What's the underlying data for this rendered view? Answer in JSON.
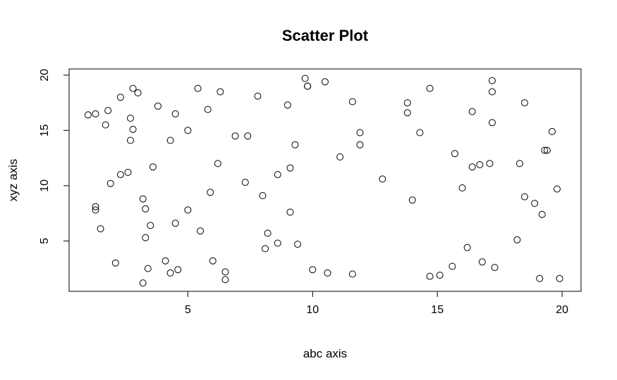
{
  "chart_data": {
    "type": "scatter",
    "title": "Scatter Plot",
    "xlabel": "abc axis",
    "ylabel": "xyz axis",
    "xlim": [
      0.24,
      20.76
    ],
    "ylim": [
      0.44,
      20.56
    ],
    "xticks": [
      5,
      10,
      15,
      20
    ],
    "yticks": [
      5,
      10,
      15,
      20
    ],
    "grid": false,
    "legend": "none",
    "colors": {
      "points": "#000000",
      "frame": "#000000",
      "background": "#ffffff"
    },
    "points": [
      [
        1.0,
        16.4
      ],
      [
        1.3,
        16.5
      ],
      [
        1.8,
        16.8
      ],
      [
        1.7,
        15.5
      ],
      [
        2.3,
        18.0
      ],
      [
        2.8,
        18.8
      ],
      [
        3.0,
        18.4
      ],
      [
        2.7,
        16.1
      ],
      [
        2.8,
        15.1
      ],
      [
        2.7,
        14.1
      ],
      [
        2.3,
        11.0
      ],
      [
        2.6,
        11.2
      ],
      [
        1.9,
        10.2
      ],
      [
        1.3,
        8.1
      ],
      [
        1.3,
        7.8
      ],
      [
        1.5,
        6.1
      ],
      [
        2.1,
        3.0
      ],
      [
        3.2,
        1.2
      ],
      [
        3.2,
        8.8
      ],
      [
        3.3,
        7.9
      ],
      [
        3.3,
        5.3
      ],
      [
        3.5,
        6.4
      ],
      [
        3.4,
        2.5
      ],
      [
        3.6,
        11.7
      ],
      [
        3.8,
        17.2
      ],
      [
        4.1,
        3.2
      ],
      [
        4.3,
        2.1
      ],
      [
        4.3,
        14.1
      ],
      [
        4.5,
        16.5
      ],
      [
        4.5,
        6.6
      ],
      [
        4.6,
        2.4
      ],
      [
        5.0,
        15.0
      ],
      [
        5.0,
        7.8
      ],
      [
        5.4,
        18.8
      ],
      [
        5.5,
        5.9
      ],
      [
        5.8,
        16.9
      ],
      [
        5.9,
        9.4
      ],
      [
        6.0,
        3.2
      ],
      [
        6.2,
        12.0
      ],
      [
        6.3,
        18.5
      ],
      [
        6.5,
        1.5
      ],
      [
        6.5,
        2.2
      ],
      [
        6.9,
        14.5
      ],
      [
        7.3,
        10.3
      ],
      [
        7.4,
        14.5
      ],
      [
        7.8,
        18.1
      ],
      [
        8.0,
        9.1
      ],
      [
        8.1,
        4.3
      ],
      [
        8.2,
        5.7
      ],
      [
        8.6,
        11.0
      ],
      [
        8.6,
        4.8
      ],
      [
        9.0,
        17.3
      ],
      [
        9.1,
        11.6
      ],
      [
        9.1,
        7.6
      ],
      [
        9.3,
        13.7
      ],
      [
        9.4,
        4.7
      ],
      [
        9.7,
        19.7
      ],
      [
        9.8,
        19.0
      ],
      [
        9.8,
        19.0
      ],
      [
        10.0,
        2.4
      ],
      [
        10.5,
        19.4
      ],
      [
        10.6,
        2.1
      ],
      [
        11.1,
        12.6
      ],
      [
        11.6,
        17.6
      ],
      [
        11.6,
        2.0
      ],
      [
        11.9,
        14.8
      ],
      [
        11.9,
        13.7
      ],
      [
        12.8,
        10.6
      ],
      [
        13.8,
        17.5
      ],
      [
        13.8,
        16.6
      ],
      [
        14.0,
        8.7
      ],
      [
        14.3,
        14.8
      ],
      [
        14.7,
        1.8
      ],
      [
        14.7,
        18.8
      ],
      [
        15.1,
        1.9
      ],
      [
        15.6,
        2.7
      ],
      [
        15.7,
        12.9
      ],
      [
        16.0,
        9.8
      ],
      [
        16.2,
        4.4
      ],
      [
        16.4,
        16.7
      ],
      [
        16.4,
        11.7
      ],
      [
        16.7,
        11.9
      ],
      [
        16.8,
        3.1
      ],
      [
        17.1,
        12.0
      ],
      [
        17.2,
        19.5
      ],
      [
        17.2,
        18.5
      ],
      [
        17.2,
        15.7
      ],
      [
        17.3,
        2.6
      ],
      [
        18.2,
        5.1
      ],
      [
        18.3,
        12.0
      ],
      [
        18.5,
        17.5
      ],
      [
        18.5,
        9.0
      ],
      [
        18.9,
        8.4
      ],
      [
        19.1,
        1.6
      ],
      [
        19.2,
        7.4
      ],
      [
        19.3,
        13.2
      ],
      [
        19.4,
        13.2
      ],
      [
        19.6,
        14.9
      ],
      [
        19.8,
        9.7
      ],
      [
        19.9,
        1.6
      ]
    ]
  }
}
